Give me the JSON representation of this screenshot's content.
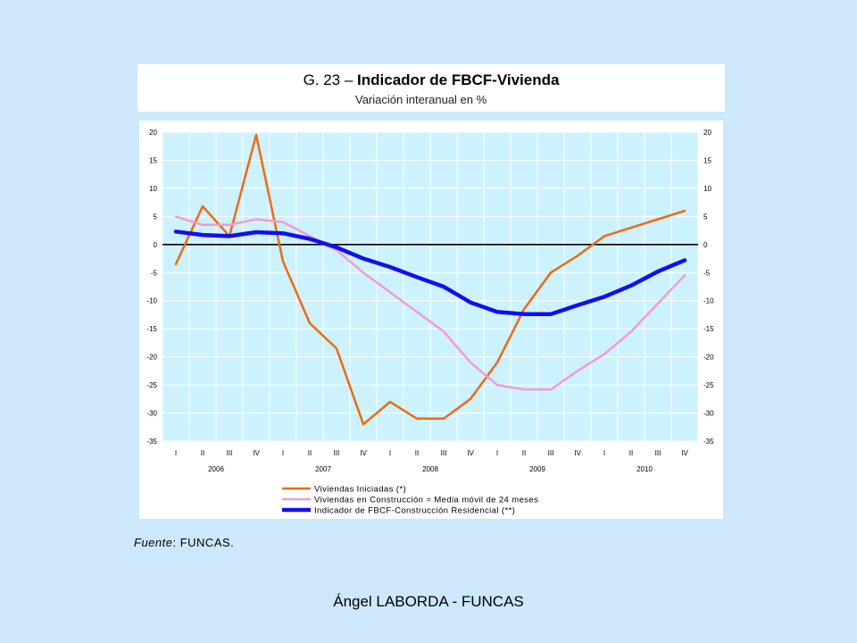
{
  "header": {
    "title_prefix": "G. 23 – ",
    "title_main": "Indicador de FBCF-Vivienda",
    "subtitle": "Variación interanual en %"
  },
  "source": {
    "label": "Fuente",
    "sep": ": ",
    "value": "FUNCAS."
  },
  "footer": {
    "author": "Ángel LABORDA - FUNCAS"
  },
  "chart_data": {
    "type": "line",
    "categories": [
      "I",
      "II",
      "III",
      "IV",
      "I",
      "II",
      "III",
      "IV",
      "I",
      "II",
      "III",
      "IV",
      "I",
      "II",
      "III",
      "IV",
      "I",
      "II",
      "III",
      "IV"
    ],
    "years": [
      "2006",
      "2007",
      "2008",
      "2009",
      "2010"
    ],
    "ylim": [
      -35,
      20
    ],
    "yticks": [
      20,
      15,
      10,
      5,
      0,
      -5,
      -10,
      -15,
      -20,
      -25,
      -30,
      -35
    ],
    "grid": true,
    "legend_position": "bottom",
    "colors": {
      "plot_bg": "#ccf2ff",
      "grid": "#ffffff",
      "zero_line": "#000000"
    },
    "series": [
      {
        "name": "Viviendas Iniciadas (*)",
        "color": "#ee6a10",
        "width": 2.5,
        "values": [
          -3.5,
          6.8,
          1.5,
          19.5,
          -3,
          -14,
          -18.5,
          -32,
          -28,
          -31,
          -31,
          -27.5,
          -21,
          -11.5,
          -5,
          -2,
          1.5,
          3,
          4.5,
          6
        ]
      },
      {
        "name": "Viviendas en Construcción = Media móvil de 24 meses",
        "color": "#f79acb",
        "width": 2.5,
        "values": [
          5,
          3.5,
          3.5,
          4.5,
          4,
          1.5,
          -1,
          -5,
          -8.5,
          -12,
          -15.5,
          -21,
          -25,
          -25.8,
          -25.8,
          -22.5,
          -19.5,
          -15.5,
          -10.5,
          -5.5
        ]
      },
      {
        "name": "Indicador de FBCF-Construcción Residencial (**)",
        "color": "#1010ee",
        "width": 4.5,
        "values": [
          2.3,
          1.7,
          1.5,
          2.2,
          2,
          1,
          -0.5,
          -2.5,
          -4,
          -5.8,
          -7.5,
          -10.3,
          -12,
          -12.4,
          -12.4,
          -10.8,
          -9.3,
          -7.3,
          -4.8,
          -2.8
        ]
      }
    ]
  }
}
